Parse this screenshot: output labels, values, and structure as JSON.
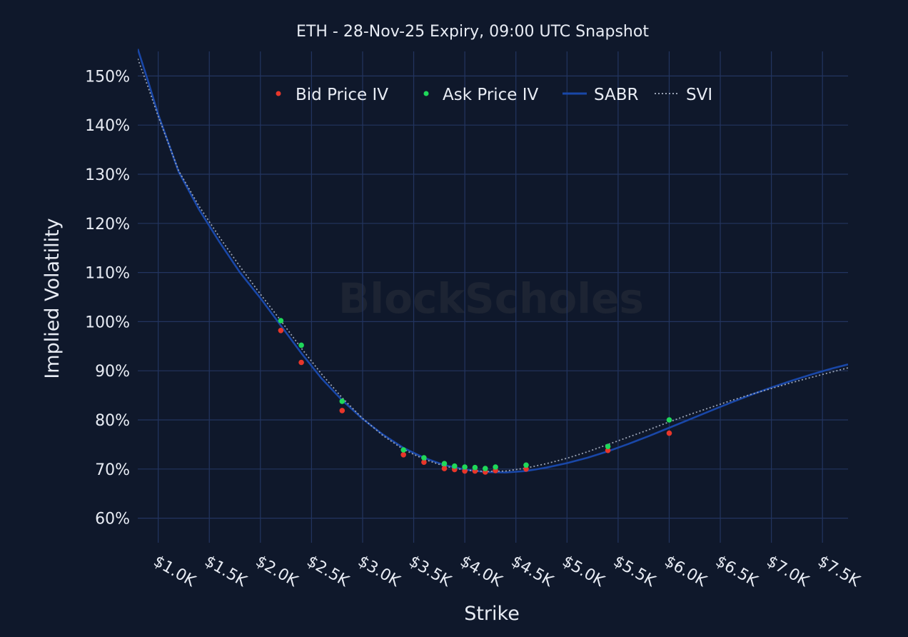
{
  "colors": {
    "background": "#0f182b",
    "grid": "#233560",
    "text": "#e8ecf4",
    "bid": "#e8362a",
    "ask": "#1fd85a",
    "sabr": "#1947a8",
    "svi": "#9aa3b5",
    "watermark": "#2a2f3a"
  },
  "watermark": "BlockScholes",
  "chart_data": {
    "type": "scatter",
    "title": "ETH - 28-Nov-25 Expiry, 09:00 UTC Snapshot",
    "xlabel": "Strike",
    "ylabel": "Implied Volatility",
    "xlim": [
      800,
      7750
    ],
    "ylim": [
      55,
      155
    ],
    "grid": true,
    "legend_position": "top-center",
    "x_ticks": [
      {
        "value": 1000,
        "label": "$1.0K"
      },
      {
        "value": 1500,
        "label": "$1.5K"
      },
      {
        "value": 2000,
        "label": "$2.0K"
      },
      {
        "value": 2500,
        "label": "$2.5K"
      },
      {
        "value": 3000,
        "label": "$3.0K"
      },
      {
        "value": 3500,
        "label": "$3.5K"
      },
      {
        "value": 4000,
        "label": "$4.0K"
      },
      {
        "value": 4500,
        "label": "$4.5K"
      },
      {
        "value": 5000,
        "label": "$5.0K"
      },
      {
        "value": 5500,
        "label": "$5.5K"
      },
      {
        "value": 6000,
        "label": "$6.0K"
      },
      {
        "value": 6500,
        "label": "$6.5K"
      },
      {
        "value": 7000,
        "label": "$7.0K"
      },
      {
        "value": 7500,
        "label": "$7.5K"
      }
    ],
    "y_ticks": [
      {
        "value": 60,
        "label": "60%"
      },
      {
        "value": 70,
        "label": "70%"
      },
      {
        "value": 80,
        "label": "80%"
      },
      {
        "value": 90,
        "label": "90%"
      },
      {
        "value": 100,
        "label": "100%"
      },
      {
        "value": 110,
        "label": "110%"
      },
      {
        "value": 120,
        "label": "120%"
      },
      {
        "value": 130,
        "label": "130%"
      },
      {
        "value": 140,
        "label": "140%"
      },
      {
        "value": 150,
        "label": "150%"
      }
    ],
    "series": [
      {
        "name": "Bid Price IV",
        "kind": "markers",
        "color": "#e8362a",
        "points": [
          [
            2200,
            98.2
          ],
          [
            2400,
            91.7
          ],
          [
            2800,
            81.9
          ],
          [
            3400,
            72.9
          ],
          [
            3600,
            71.4
          ],
          [
            3800,
            70.1
          ],
          [
            3900,
            69.9
          ],
          [
            4000,
            69.6
          ],
          [
            4100,
            69.6
          ],
          [
            4200,
            69.4
          ],
          [
            4300,
            69.7
          ],
          [
            4600,
            70.0
          ],
          [
            5400,
            73.8
          ],
          [
            6000,
            77.3
          ]
        ]
      },
      {
        "name": "Ask Price IV",
        "kind": "markers",
        "color": "#1fd85a",
        "points": [
          [
            2200,
            100.2
          ],
          [
            2400,
            95.2
          ],
          [
            2800,
            83.8
          ],
          [
            3400,
            73.9
          ],
          [
            3600,
            72.3
          ],
          [
            3800,
            71.1
          ],
          [
            3900,
            70.6
          ],
          [
            4000,
            70.4
          ],
          [
            4100,
            70.3
          ],
          [
            4200,
            70.1
          ],
          [
            4300,
            70.4
          ],
          [
            4600,
            70.8
          ],
          [
            5400,
            74.6
          ],
          [
            6000,
            80.0
          ]
        ]
      },
      {
        "name": "SABR",
        "kind": "line",
        "color": "#1947a8",
        "points": [
          [
            800,
            155.5
          ],
          [
            900,
            149.0
          ],
          [
            1000,
            142.2
          ],
          [
            1200,
            130.5
          ],
          [
            1400,
            122.8
          ],
          [
            1600,
            116.2
          ],
          [
            1800,
            110.0
          ],
          [
            2000,
            104.8
          ],
          [
            2200,
            99.2
          ],
          [
            2400,
            93.6
          ],
          [
            2600,
            88.4
          ],
          [
            2800,
            84.0
          ],
          [
            3000,
            80.2
          ],
          [
            3200,
            77.0
          ],
          [
            3400,
            74.3
          ],
          [
            3600,
            72.3
          ],
          [
            3800,
            70.8
          ],
          [
            4000,
            69.9
          ],
          [
            4200,
            69.4
          ],
          [
            4400,
            69.3
          ],
          [
            4600,
            69.6
          ],
          [
            4800,
            70.3
          ],
          [
            5000,
            71.2
          ],
          [
            5200,
            72.3
          ],
          [
            5400,
            73.6
          ],
          [
            5600,
            75.1
          ],
          [
            5800,
            76.7
          ],
          [
            6000,
            78.4
          ],
          [
            6200,
            80.1
          ],
          [
            6400,
            81.8
          ],
          [
            6600,
            83.5
          ],
          [
            6800,
            85.1
          ],
          [
            7000,
            86.6
          ],
          [
            7200,
            88.0
          ],
          [
            7400,
            89.3
          ],
          [
            7600,
            90.5
          ],
          [
            7750,
            91.3
          ]
        ]
      },
      {
        "name": "SVI",
        "kind": "line",
        "dash": "dotted",
        "color": "#9aa3b5",
        "points": [
          [
            800,
            153.5
          ],
          [
            900,
            147.8
          ],
          [
            1000,
            141.8
          ],
          [
            1200,
            130.7
          ],
          [
            1400,
            123.5
          ],
          [
            1600,
            117.2
          ],
          [
            1800,
            111.2
          ],
          [
            2000,
            105.6
          ],
          [
            2200,
            100.2
          ],
          [
            2400,
            94.6
          ],
          [
            2600,
            89.3
          ],
          [
            2800,
            84.5
          ],
          [
            3000,
            80.3
          ],
          [
            3200,
            76.8
          ],
          [
            3400,
            74.0
          ],
          [
            3600,
            72.0
          ],
          [
            3800,
            70.6
          ],
          [
            4000,
            69.8
          ],
          [
            4200,
            69.5
          ],
          [
            4400,
            69.6
          ],
          [
            4600,
            70.2
          ],
          [
            4800,
            71.1
          ],
          [
            5000,
            72.2
          ],
          [
            5200,
            73.5
          ],
          [
            5400,
            75.0
          ],
          [
            5600,
            76.5
          ],
          [
            5800,
            78.0
          ],
          [
            6000,
            79.6
          ],
          [
            6200,
            81.1
          ],
          [
            6400,
            82.5
          ],
          [
            6600,
            83.9
          ],
          [
            6800,
            85.2
          ],
          [
            7000,
            86.4
          ],
          [
            7200,
            87.6
          ],
          [
            7400,
            88.7
          ],
          [
            7600,
            89.8
          ],
          [
            7750,
            90.6
          ]
        ]
      }
    ]
  }
}
